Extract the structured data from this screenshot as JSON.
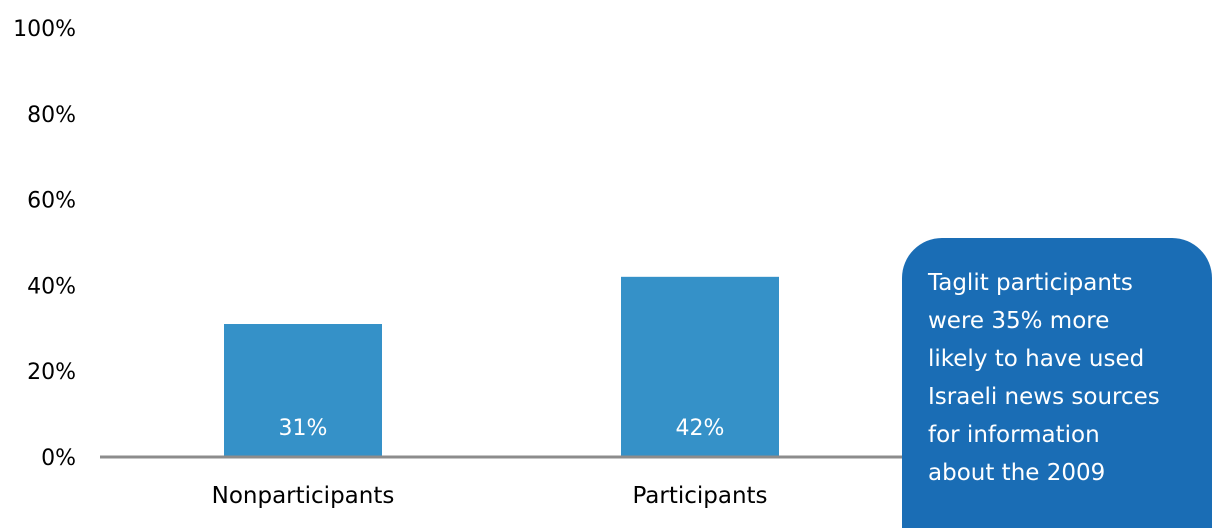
{
  "chart_data": {
    "type": "bar",
    "categories": [
      "Nonparticipants",
      "Participants"
    ],
    "values": [
      31,
      42
    ],
    "data_labels": [
      "31%",
      "42%"
    ],
    "yticks": [
      "0%",
      "20%",
      "40%",
      "60%",
      "80%",
      "100%"
    ],
    "ylim": [
      0,
      100
    ],
    "title": "",
    "xlabel": "",
    "ylabel": "",
    "grid": false,
    "colors": {
      "bar": "#3591c8",
      "axis": "#8c8c8c",
      "label": "#ffffff"
    }
  },
  "callout": {
    "lines": [
      "Taglit participants",
      "were 35% more",
      "likely to have used",
      "Israeli news sources",
      "for information",
      "about the 2009"
    ],
    "color": "#1a6db5"
  }
}
